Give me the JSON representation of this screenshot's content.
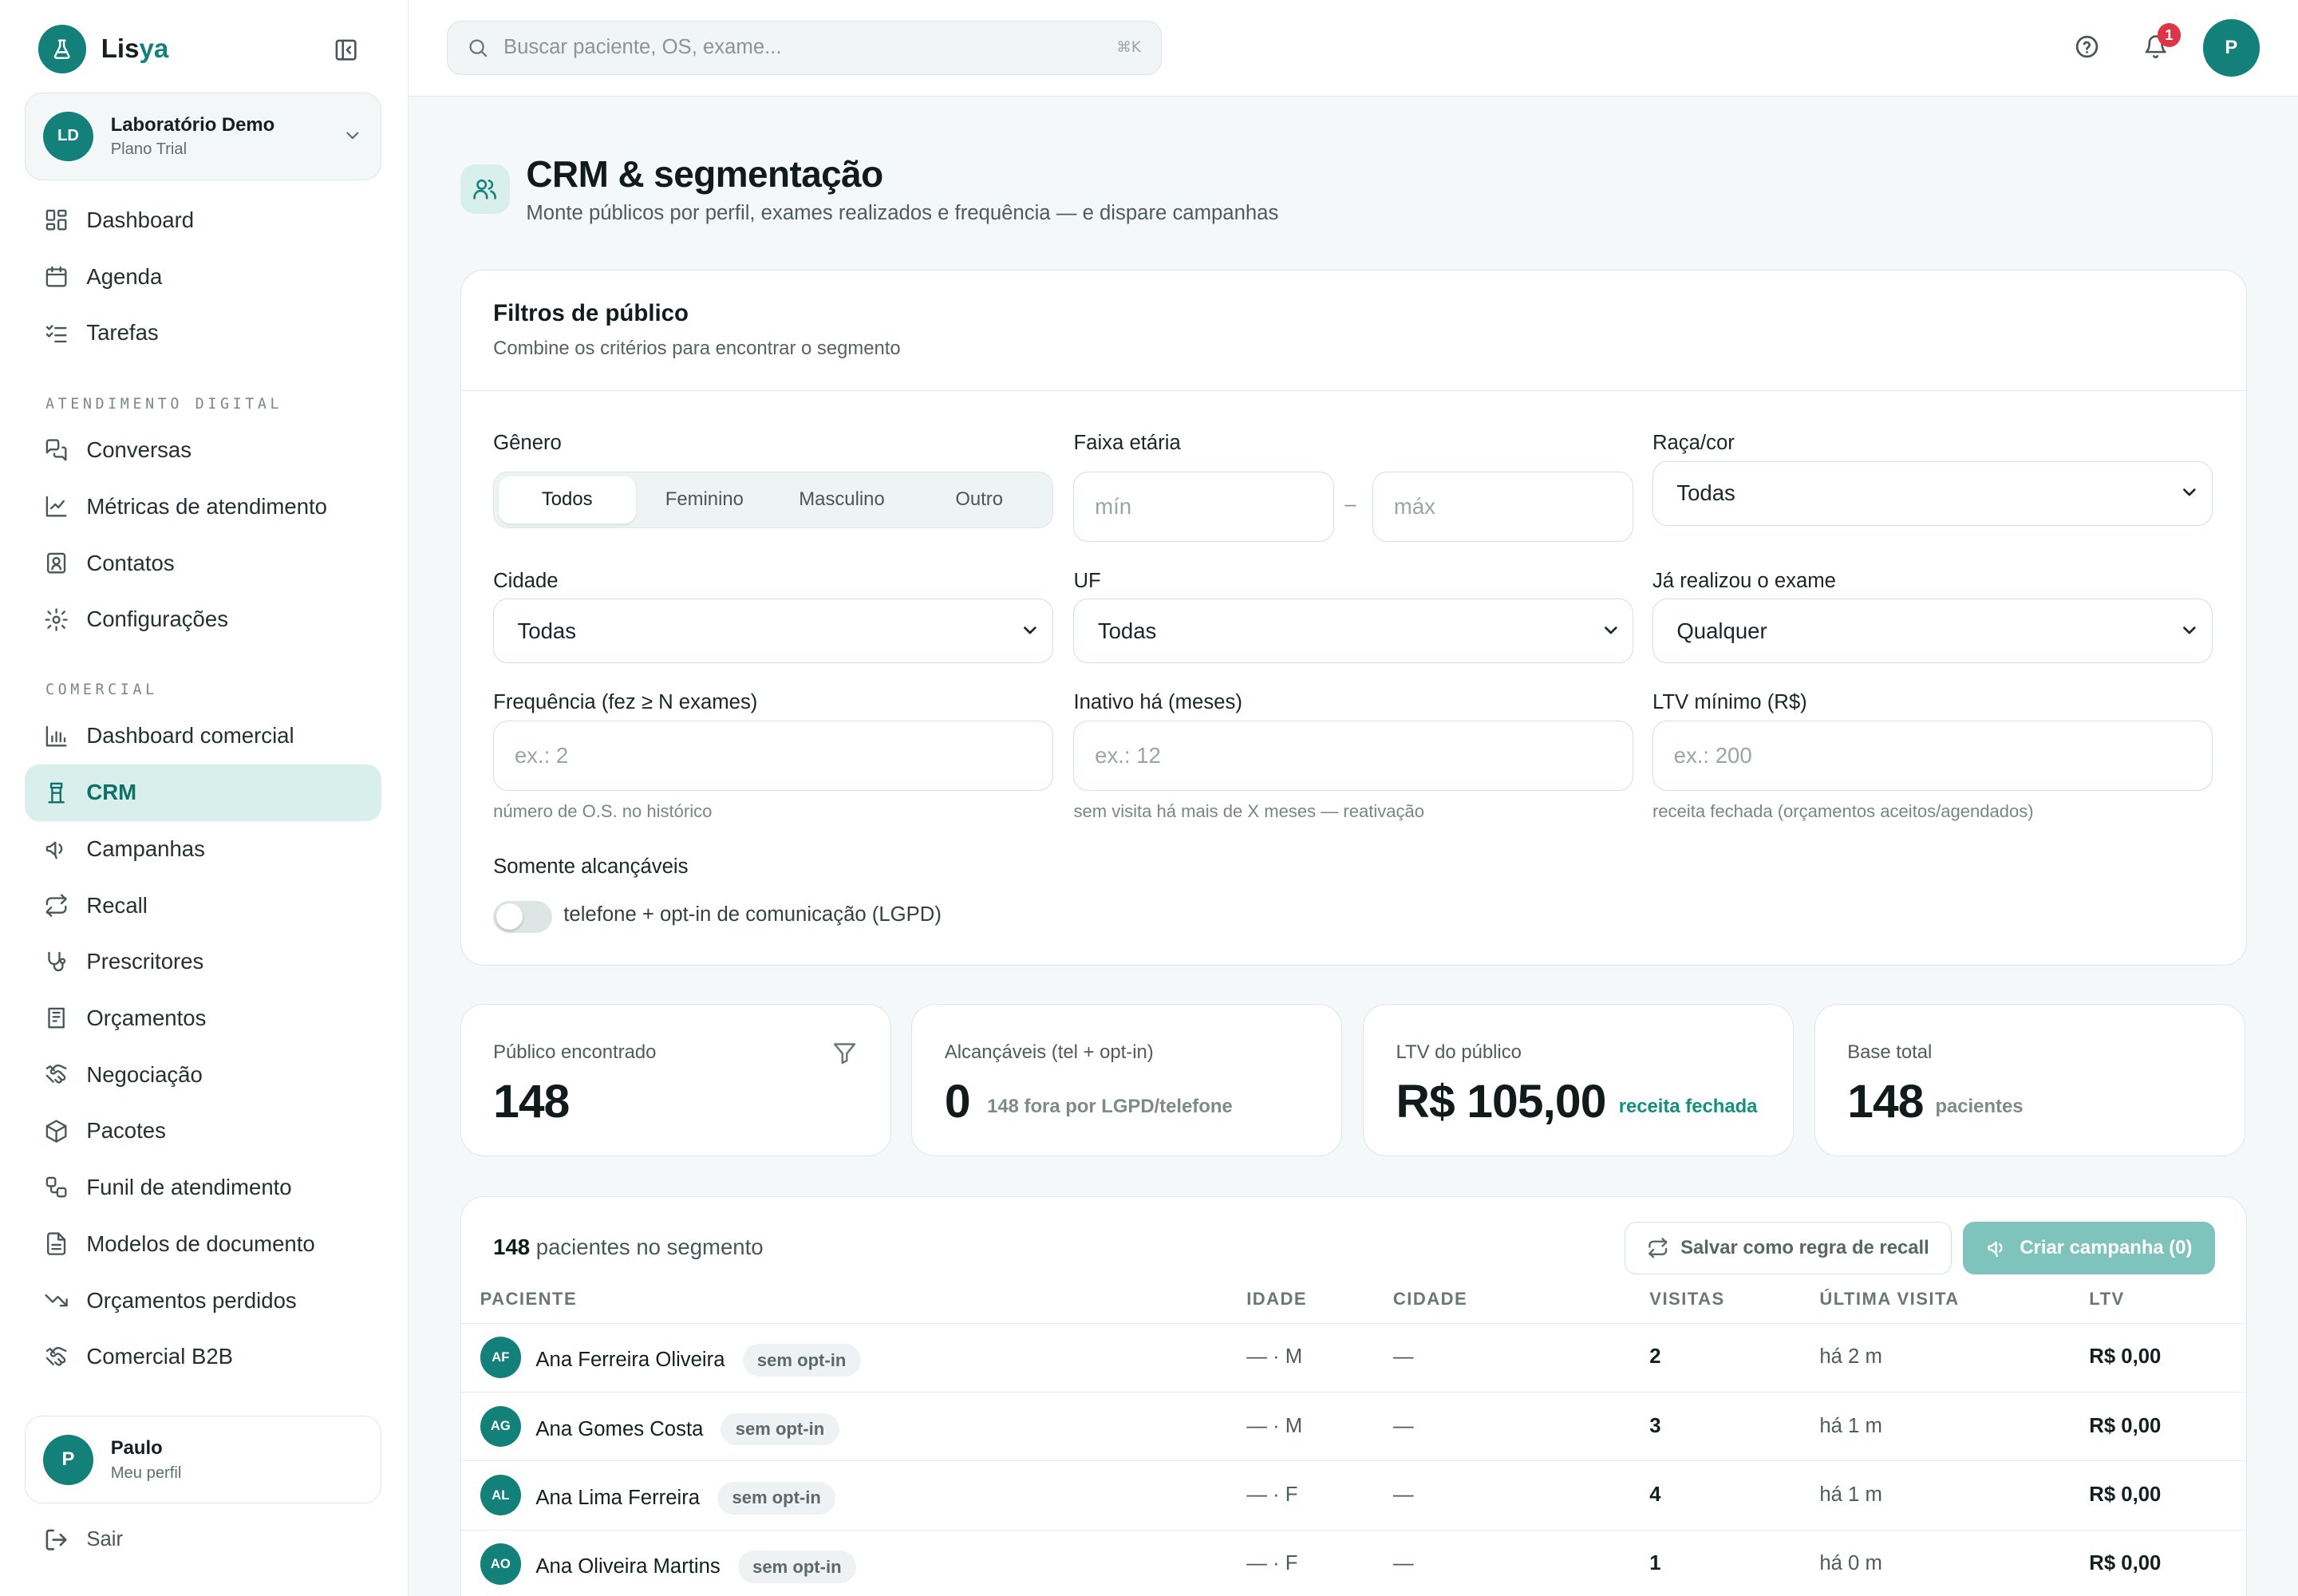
{
  "brand": {
    "name_main": "Lis",
    "name_accent": "ya"
  },
  "org": {
    "initials": "LD",
    "name": "Laboratório Demo",
    "plan": "Plano Trial"
  },
  "nav_main": [
    {
      "label": "Dashboard",
      "icon": "dashboard-icon"
    },
    {
      "label": "Agenda",
      "icon": "calendar-icon"
    },
    {
      "label": "Tarefas",
      "icon": "tasks-icon"
    }
  ],
  "section_digital": "ATENDIMENTO DIGITAL",
  "nav_digital": [
    {
      "label": "Conversas",
      "icon": "chat-icon"
    },
    {
      "label": "Métricas de atendimento",
      "icon": "line-chart-icon"
    },
    {
      "label": "Contatos",
      "icon": "contact-icon"
    },
    {
      "label": "Configurações",
      "icon": "gear-icon"
    }
  ],
  "section_comercial": "COMERCIAL",
  "nav_comercial": [
    {
      "label": "Dashboard comercial",
      "icon": "bar-chart-icon"
    },
    {
      "label": "CRM",
      "icon": "crm-icon",
      "active": true
    },
    {
      "label": "Campanhas",
      "icon": "megaphone-icon"
    },
    {
      "label": "Recall",
      "icon": "repeat-icon"
    },
    {
      "label": "Prescritores",
      "icon": "stethoscope-icon"
    },
    {
      "label": "Orçamentos",
      "icon": "receipt-icon"
    },
    {
      "label": "Negociação",
      "icon": "handshake-icon"
    },
    {
      "label": "Pacotes",
      "icon": "package-icon"
    },
    {
      "label": "Funil de atendimento",
      "icon": "workflow-icon"
    },
    {
      "label": "Modelos de documento",
      "icon": "document-icon"
    },
    {
      "label": "Orçamentos perdidos",
      "icon": "trending-down-icon"
    },
    {
      "label": "Comercial B2B",
      "icon": "handshake-icon"
    }
  ],
  "profile": {
    "initial": "P",
    "name": "Paulo",
    "sub": "Meu perfil"
  },
  "logout_label": "Sair",
  "search": {
    "placeholder": "Buscar paciente, OS, exame...",
    "shortcut": "⌘K"
  },
  "notifications": {
    "count": "1"
  },
  "user_initial": "P",
  "page": {
    "title": "CRM & segmentação",
    "subtitle": "Monte públicos por perfil, exames realizados e frequência — e dispare campanhas"
  },
  "filters": {
    "title": "Filtros de público",
    "subtitle": "Combine os critérios para encontrar o segmento",
    "genero_label": "Gênero",
    "genero_options": [
      "Todos",
      "Feminino",
      "Masculino",
      "Outro"
    ],
    "faixa_label": "Faixa etária",
    "faixa_min_placeholder": "mín",
    "faixa_max_placeholder": "máx",
    "faixa_sep": "–",
    "raca_label": "Raça/cor",
    "raca_value": "Todas",
    "cidade_label": "Cidade",
    "cidade_value": "Todas",
    "uf_label": "UF",
    "uf_value": "Todas",
    "exame_label": "Já realizou o exame",
    "exame_value": "Qualquer",
    "freq_label": "Frequência (fez ≥ N exames)",
    "freq_placeholder": "ex.: 2",
    "freq_hint": "número de O.S. no histórico",
    "inativo_label": "Inativo há (meses)",
    "inativo_placeholder": "ex.: 12",
    "inativo_hint": "sem visita há mais de X meses — reativação",
    "ltv_label": "LTV mínimo (R$)",
    "ltv_placeholder": "ex.: 200",
    "ltv_hint": "receita fechada (orçamentos aceitos/agendados)",
    "alcancaveis_label": "Somente alcançáveis",
    "alcancaveis_toggle_label": "telefone + opt-in de comunicação (LGPD)",
    "alcancaveis_on": false
  },
  "stats": [
    {
      "label": "Público encontrado",
      "value": "148",
      "note": ""
    },
    {
      "label": "Alcançáveis (tel + opt-in)",
      "value": "0",
      "note": "148 fora por LGPD/telefone"
    },
    {
      "label": "LTV do público",
      "value": "R$ 105,00",
      "note": "receita fechada"
    },
    {
      "label": "Base total",
      "value": "148",
      "note": "pacientes"
    }
  ],
  "table": {
    "count": "148",
    "count_suffix": "pacientes no segmento",
    "save_recall_label": "Salvar como regra de recall",
    "create_campaign_label": "Criar campanha (0)",
    "columns": [
      "PACIENTE",
      "IDADE",
      "CIDADE",
      "VISITAS",
      "ÚLTIMA VISITA",
      "LTV"
    ],
    "rows": [
      {
        "initials": "AF",
        "name": "Ana Ferreira Oliveira",
        "badge": "sem opt-in",
        "idade": "— · M",
        "cidade": "—",
        "visitas": "2",
        "ultima": "há 2 m",
        "ltv": "R$ 0,00"
      },
      {
        "initials": "AG",
        "name": "Ana Gomes Costa",
        "badge": "sem opt-in",
        "idade": "— · M",
        "cidade": "—",
        "visitas": "3",
        "ultima": "há 1 m",
        "ltv": "R$ 0,00"
      },
      {
        "initials": "AL",
        "name": "Ana Lima Ferreira",
        "badge": "sem opt-in",
        "idade": "— · F",
        "cidade": "—",
        "visitas": "4",
        "ultima": "há 1 m",
        "ltv": "R$ 0,00"
      },
      {
        "initials": "AO",
        "name": "Ana Oliveira Martins",
        "badge": "sem opt-in",
        "idade": "— · F",
        "cidade": "—",
        "visitas": "1",
        "ultima": "há 0 m",
        "ltv": "R$ 0,00"
      }
    ]
  },
  "colors": {
    "accent": "#13807a",
    "accent_soft": "#d9efec",
    "badge_red": "#dc3545",
    "positive": "#14907f"
  }
}
